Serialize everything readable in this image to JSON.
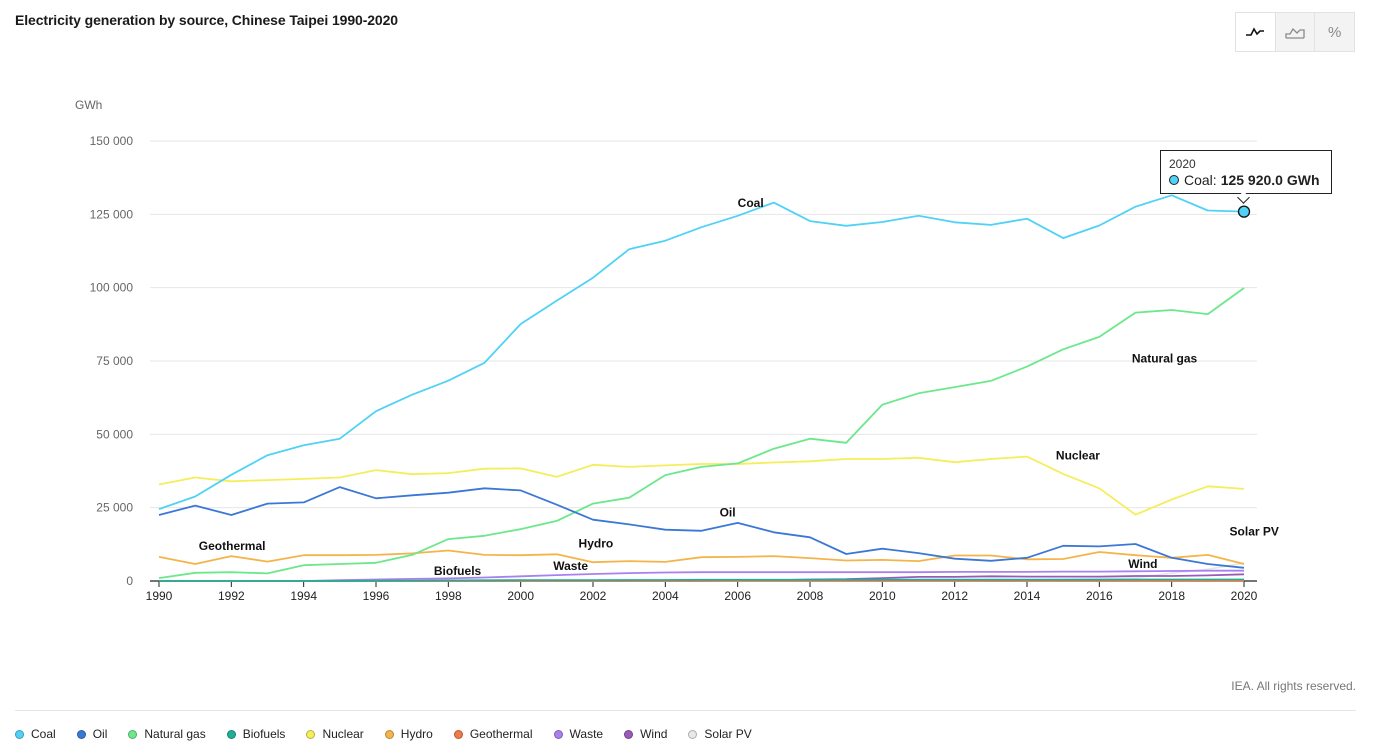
{
  "title": "Electricity generation by source, Chinese Taipei 1990-2020",
  "toolbar": {
    "buttons": [
      {
        "name": "line-chart-icon",
        "active": true
      },
      {
        "name": "area-chart-icon",
        "active": false
      },
      {
        "name": "percent-icon",
        "active": false,
        "glyph": "%"
      }
    ]
  },
  "credit": "IEA. All rights reserved.",
  "tooltip": {
    "year": "2020",
    "series": "Coal:",
    "value": "125 920.0 GWh",
    "color": "#4fd2f5"
  },
  "chart_data": {
    "type": "line",
    "title": "Electricity generation by source, Chinese Taipei 1990-2020",
    "ylabel": "GWh",
    "xlabel": "",
    "ylim": [
      0,
      150000
    ],
    "yticks": [
      0,
      25000,
      50000,
      75000,
      100000,
      125000,
      150000
    ],
    "ytick_labels": [
      "0",
      "25 000",
      "50 000",
      "75 000",
      "100 000",
      "125 000",
      "150 000"
    ],
    "xlim": [
      1990,
      2020
    ],
    "xticks": [
      1990,
      1992,
      1994,
      1996,
      1998,
      2000,
      2002,
      2004,
      2006,
      2008,
      2010,
      2012,
      2014,
      2016,
      2018,
      2020
    ],
    "grid": true,
    "legend_position": "bottom",
    "x": [
      1990,
      1991,
      1992,
      1993,
      1994,
      1995,
      1996,
      1997,
      1998,
      1999,
      2000,
      2001,
      2002,
      2003,
      2004,
      2005,
      2006,
      2007,
      2008,
      2009,
      2010,
      2011,
      2012,
      2013,
      2014,
      2015,
      2016,
      2017,
      2018,
      2019,
      2020
    ],
    "series": [
      {
        "name": "Coal",
        "color": "#4fd2f5",
        "label": {
          "text": "Coal",
          "year": 2006,
          "value": 127500
        },
        "values": [
          24500,
          28800,
          36200,
          42900,
          46300,
          48500,
          57900,
          63500,
          68300,
          74400,
          87600,
          95600,
          103400,
          113100,
          116000,
          120600,
          124500,
          129000,
          122700,
          121100,
          122400,
          124500,
          122300,
          121400,
          123500,
          116900,
          121200,
          127600,
          131500,
          126300,
          125920
        ]
      },
      {
        "name": "Oil",
        "color": "#3b78d6",
        "label": {
          "text": "Oil",
          "year": 2005.5,
          "value": 22000
        },
        "values": [
          22500,
          25700,
          22500,
          26400,
          26800,
          32000,
          28200,
          29200,
          30100,
          31600,
          30900,
          26000,
          20900,
          19300,
          17500,
          17100,
          19800,
          16600,
          14900,
          9200,
          11000,
          9500,
          7600,
          6900,
          7900,
          12000,
          11800,
          12600,
          7900,
          5800,
          4500
        ]
      },
      {
        "name": "Natural gas",
        "color": "#6ce88c",
        "label": {
          "text": "Natural gas",
          "year": 2016.9,
          "value": 74500
        },
        "values": [
          1000,
          2800,
          3000,
          2600,
          5400,
          5800,
          6200,
          8900,
          14300,
          15400,
          17700,
          20500,
          26400,
          28400,
          36100,
          38900,
          40100,
          45100,
          48500,
          47100,
          60100,
          64000,
          66100,
          68200,
          73100,
          79000,
          83200,
          91500,
          92400,
          91000,
          99900
        ]
      },
      {
        "name": "Biofuels",
        "color": "#1fae98",
        "label": {
          "text": "Biofuels",
          "year": 1997.6,
          "value": 2000
        },
        "values": [
          0,
          0,
          0,
          0,
          0,
          0,
          100,
          150,
          200,
          250,
          300,
          300,
          300,
          350,
          350,
          400,
          400,
          400,
          400,
          450,
          450,
          450,
          450,
          450,
          450,
          450,
          450,
          500,
          500,
          500,
          500
        ]
      },
      {
        "name": "Nuclear",
        "color": "#f5ee5a",
        "label": {
          "text": "Nuclear",
          "year": 2014.8,
          "value": 41500
        },
        "values": [
          32900,
          35300,
          34000,
          34400,
          34800,
          35300,
          37800,
          36400,
          36800,
          38300,
          38400,
          35500,
          39600,
          38900,
          39400,
          39900,
          39900,
          40400,
          40800,
          41600,
          41600,
          42000,
          40500,
          41600,
          42400,
          36500,
          31600,
          22600,
          27800,
          32300,
          31400
        ]
      },
      {
        "name": "Hydro",
        "color": "#f5b44a",
        "label": {
          "text": "Hydro",
          "year": 2001.6,
          "value": 11500
        },
        "values": [
          8200,
          5800,
          8500,
          6600,
          8800,
          8800,
          8900,
          9400,
          10400,
          8900,
          8800,
          9100,
          6400,
          6800,
          6500,
          8100,
          8200,
          8500,
          7800,
          7000,
          7200,
          6800,
          8700,
          8700,
          7400,
          7500,
          9900,
          8800,
          7900,
          8900,
          5800
        ]
      },
      {
        "name": "Geothermal",
        "color": "#f07a4a",
        "label": {
          "text": "Geothermal",
          "year": 1991.1,
          "value": 10500
        },
        "values": [
          0,
          0,
          0,
          0,
          0,
          0,
          0,
          0,
          0,
          0,
          0,
          0,
          0,
          0,
          0,
          0,
          0,
          0,
          0,
          0,
          0,
          0,
          0,
          0,
          0,
          0,
          0,
          0,
          0,
          0,
          0
        ]
      },
      {
        "name": "Waste",
        "color": "#a980ef",
        "label": {
          "text": "Waste",
          "year": 2000.9,
          "value": 3800
        },
        "values": [
          0,
          0,
          0,
          0,
          0,
          300,
          500,
          700,
          900,
          1200,
          1600,
          2000,
          2400,
          2700,
          2900,
          3000,
          3000,
          3000,
          3000,
          3000,
          3000,
          3000,
          3100,
          3100,
          3100,
          3200,
          3200,
          3300,
          3400,
          3500,
          3500
        ]
      },
      {
        "name": "Wind",
        "color": "#9a5bb8",
        "label": {
          "text": "Wind",
          "year": 2016.8,
          "value": 4500
        },
        "values": [
          0,
          0,
          0,
          0,
          0,
          0,
          0,
          0,
          0,
          0,
          0,
          0,
          0,
          0,
          0,
          0,
          200,
          300,
          500,
          600,
          1000,
          1400,
          1400,
          1600,
          1500,
          1500,
          1500,
          1700,
          1700,
          1900,
          2300
        ]
      },
      {
        "name": "Solar PV",
        "color": "#e8e8e8",
        "label": {
          "text": "Solar PV",
          "year": 2019.6,
          "value": 15500
        },
        "values": [
          0,
          0,
          0,
          0,
          0,
          0,
          0,
          0,
          0,
          0,
          0,
          0,
          0,
          0,
          0,
          0,
          0,
          0,
          0,
          0,
          0,
          0,
          100,
          200,
          300,
          500,
          800,
          1100,
          2700,
          4000,
          6100
        ]
      }
    ]
  }
}
